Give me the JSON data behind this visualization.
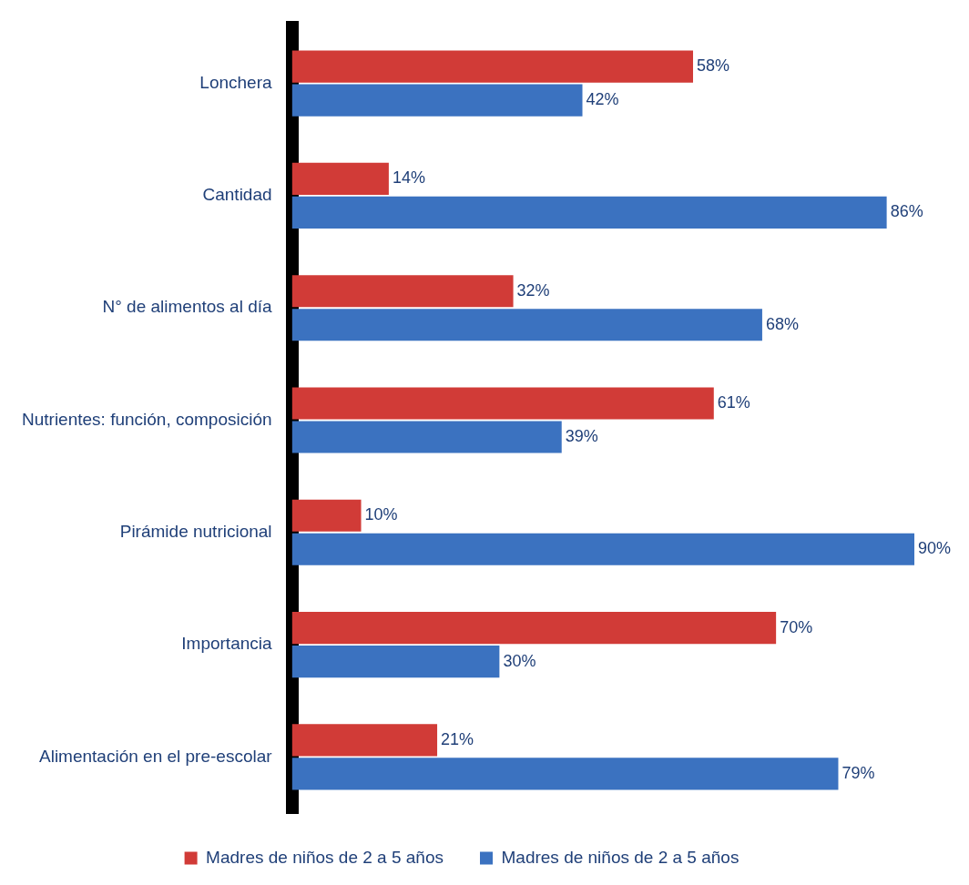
{
  "chart_data": {
    "type": "bar",
    "orientation": "horizontal",
    "categories": [
      "Lonchera",
      "Cantidad",
      "N° de alimentos al día",
      "Nutrientes: función, composición",
      "Pirámide nutricional",
      "Importancia",
      "Alimentación en el pre-escolar"
    ],
    "series": [
      {
        "name": "Madres de niños de 2 a 5 años",
        "color": "#d13b37",
        "values": [
          58,
          14,
          32,
          61,
          10,
          70,
          21
        ],
        "value_labels": [
          "58%",
          "14%",
          "32%",
          "61%",
          "10%",
          "70%",
          "21%"
        ]
      },
      {
        "name": "Madres de niños de 2 a 5 años",
        "color": "#3b72c0",
        "values": [
          42,
          86,
          68,
          39,
          90,
          30,
          79
        ],
        "value_labels": [
          "42%",
          "86%",
          "68%",
          "39%",
          "90%",
          "30%",
          "79%"
        ]
      }
    ],
    "legend": "bottom",
    "tick_labels": "y"
  }
}
